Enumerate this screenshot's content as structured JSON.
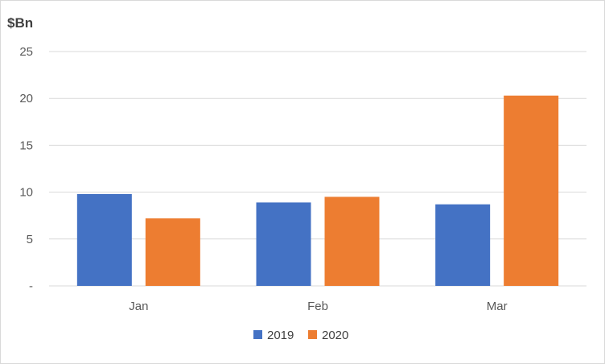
{
  "chart_data": {
    "type": "bar",
    "title": "",
    "unit_label": "$Bn",
    "xlabel": "",
    "ylabel": "",
    "categories": [
      "Jan",
      "Feb",
      "Mar"
    ],
    "series": [
      {
        "name": "2019",
        "color": "#4472c4",
        "values": [
          9.8,
          8.9,
          8.7
        ]
      },
      {
        "name": "2020",
        "color": "#ed7d31",
        "values": [
          7.2,
          9.5,
          20.3
        ]
      }
    ],
    "ylim": [
      0,
      25
    ],
    "yticks": [
      {
        "value": 0,
        "label": "-"
      },
      {
        "value": 5,
        "label": "5"
      },
      {
        "value": 10,
        "label": "10"
      },
      {
        "value": 15,
        "label": "15"
      },
      {
        "value": 20,
        "label": "20"
      },
      {
        "value": 25,
        "label": "25"
      }
    ],
    "grid": true,
    "legend": "bottom"
  }
}
